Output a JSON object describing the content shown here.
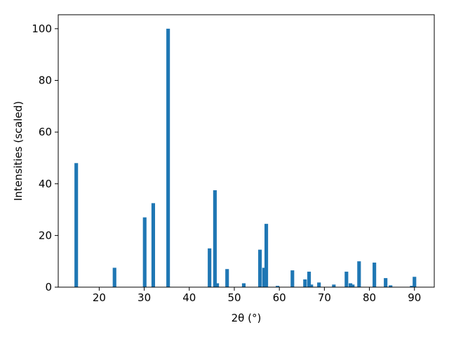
{
  "chart_data": {
    "type": "bar",
    "xlabel": "2θ (°)",
    "ylabel": "Intensities (scaled)",
    "x": [
      14.9,
      23.4,
      30.1,
      32.0,
      35.3,
      44.5,
      45.7,
      46.2,
      48.4,
      52.1,
      55.7,
      56.6,
      57.1,
      59.6,
      62.9,
      65.7,
      66.6,
      67.1,
      68.8,
      72.1,
      74.9,
      75.8,
      76.3,
      77.7,
      81.1,
      83.6,
      84.7,
      89.4,
      90.0
    ],
    "values": [
      48,
      7.5,
      27,
      32.5,
      100,
      15,
      37.5,
      1.5,
      7,
      1.5,
      14.5,
      7.5,
      24.5,
      0.5,
      6.5,
      3,
      6,
      1,
      1.8,
      1,
      6,
      1.5,
      1,
      10,
      9.5,
      3.5,
      0.7,
      0.5,
      4
    ],
    "color": "#1f77b4",
    "xlim": [
      10.9,
      94.4
    ],
    "ylim": [
      0,
      105.4
    ],
    "xticks": [
      20,
      30,
      40,
      50,
      60,
      70,
      80,
      90
    ],
    "yticks": [
      0,
      20,
      40,
      60,
      80,
      100
    ],
    "grid": false
  }
}
